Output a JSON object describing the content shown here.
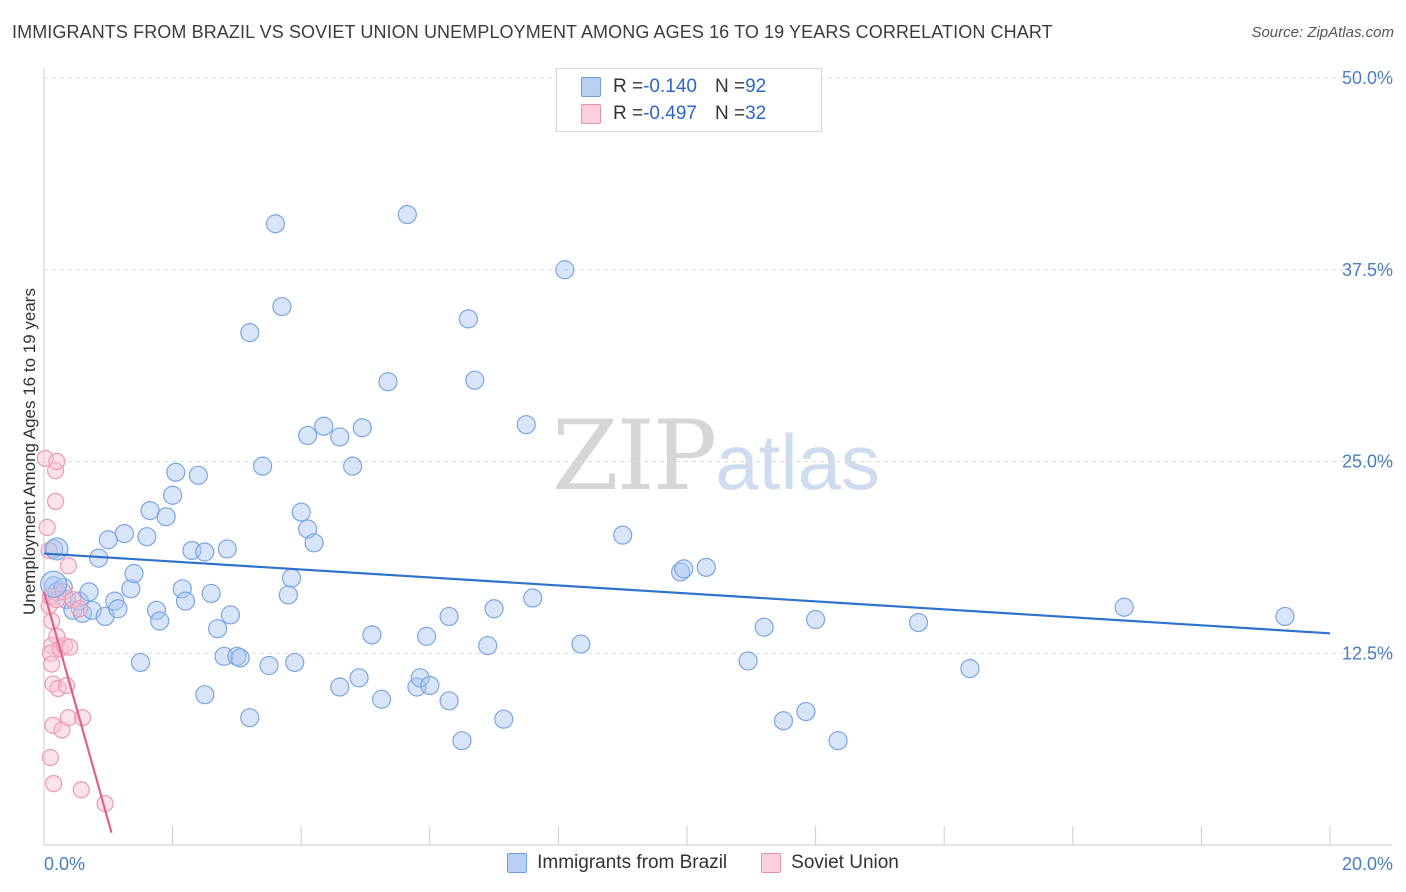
{
  "title": "IMMIGRANTS FROM BRAZIL VS SOVIET UNION UNEMPLOYMENT AMONG AGES 16 TO 19 YEARS CORRELATION CHART",
  "source": "Source: ZipAtlas.com",
  "watermark": {
    "zip": "ZIP",
    "atlas": "atlas"
  },
  "legend": {
    "r_label": "R = ",
    "n_label": "N = ",
    "rows": [
      {
        "r": "-0.140",
        "n": "92",
        "color": "#a9c6f0",
        "border": "#6e9fe0"
      },
      {
        "r": "-0.497",
        "n": "32",
        "color": "#f8c0cf",
        "border": "#ec8fab"
      }
    ]
  },
  "bottom_legend": [
    "Immigrants from Brazil",
    "Soviet Union"
  ],
  "chart_data": {
    "type": "scatter",
    "ylabel": "Unemployment Among Ages 16 to 19 years",
    "xlim": [
      0,
      20
    ],
    "ylim": [
      0,
      50
    ],
    "x_tick_labels": [
      "0.0%",
      "20.0%"
    ],
    "y_tick_labels": [
      "12.5%",
      "25.0%",
      "37.5%",
      "50.0%"
    ],
    "y_ticks": [
      12.5,
      25,
      37.5,
      50
    ],
    "grid": true,
    "legend_position": "top-center",
    "colors": {
      "brazil": "#6e9fe0",
      "soviet": "#e8769a",
      "brazil_line": "#2f72cc",
      "soviet_line": "#e3608a"
    },
    "series": [
      {
        "name": "Immigrants from Brazil",
        "trend": {
          "x": [
            0.0,
            20.0
          ],
          "y": [
            19.0,
            13.8
          ]
        },
        "points": [
          [
            0.15,
            19.3
          ],
          [
            0.15,
            16.9
          ],
          [
            0.2,
            16.5
          ],
          [
            0.3,
            16.8
          ],
          [
            0.35,
            16.0
          ],
          [
            0.45,
            15.3
          ],
          [
            0.55,
            15.9
          ],
          [
            0.6,
            15.1
          ],
          [
            0.7,
            16.5
          ],
          [
            0.75,
            15.3
          ],
          [
            0.85,
            18.7
          ],
          [
            0.95,
            14.9
          ],
          [
            1.0,
            19.9
          ],
          [
            1.1,
            15.9
          ],
          [
            1.15,
            15.4
          ],
          [
            1.25,
            20.3
          ],
          [
            1.35,
            16.7
          ],
          [
            1.4,
            17.7
          ],
          [
            1.5,
            11.9
          ],
          [
            1.6,
            20.1
          ],
          [
            1.65,
            21.8
          ],
          [
            1.75,
            15.3
          ],
          [
            1.8,
            14.6
          ],
          [
            1.9,
            21.4
          ],
          [
            2.0,
            22.8
          ],
          [
            2.05,
            24.3
          ],
          [
            2.15,
            16.7
          ],
          [
            2.2,
            15.9
          ],
          [
            2.3,
            19.2
          ],
          [
            2.4,
            24.1
          ],
          [
            2.5,
            9.8
          ],
          [
            2.5,
            19.1
          ],
          [
            2.6,
            16.4
          ],
          [
            2.7,
            14.1
          ],
          [
            2.8,
            12.3
          ],
          [
            2.85,
            19.3
          ],
          [
            2.9,
            15.0
          ],
          [
            3.0,
            12.3
          ],
          [
            3.05,
            12.2
          ],
          [
            3.2,
            33.4
          ],
          [
            3.2,
            8.3
          ],
          [
            3.4,
            24.7
          ],
          [
            3.5,
            11.7
          ],
          [
            3.6,
            40.5
          ],
          [
            3.7,
            35.1
          ],
          [
            3.8,
            16.3
          ],
          [
            3.85,
            17.4
          ],
          [
            3.9,
            11.9
          ],
          [
            4.0,
            21.7
          ],
          [
            4.1,
            20.6
          ],
          [
            4.1,
            26.7
          ],
          [
            4.2,
            19.7
          ],
          [
            4.35,
            27.3
          ],
          [
            4.6,
            26.6
          ],
          [
            4.6,
            10.3
          ],
          [
            4.8,
            24.7
          ],
          [
            4.9,
            10.9
          ],
          [
            4.95,
            27.2
          ],
          [
            5.1,
            13.7
          ],
          [
            5.25,
            9.5
          ],
          [
            5.35,
            30.2
          ],
          [
            5.65,
            41.1
          ],
          [
            5.8,
            10.3
          ],
          [
            5.85,
            10.9
          ],
          [
            5.95,
            13.6
          ],
          [
            6.0,
            10.4
          ],
          [
            6.3,
            9.4
          ],
          [
            6.3,
            14.9
          ],
          [
            6.5,
            6.8
          ],
          [
            6.6,
            34.3
          ],
          [
            6.7,
            30.3
          ],
          [
            6.9,
            13.0
          ],
          [
            7.0,
            15.4
          ],
          [
            7.15,
            8.2
          ],
          [
            7.5,
            27.4
          ],
          [
            7.6,
            16.1
          ],
          [
            8.1,
            37.5
          ],
          [
            8.35,
            13.1
          ],
          [
            9.0,
            20.2
          ],
          [
            9.9,
            17.8
          ],
          [
            9.95,
            18.0
          ],
          [
            10.3,
            18.1
          ],
          [
            10.95,
            12.0
          ],
          [
            11.2,
            14.2
          ],
          [
            11.5,
            8.1
          ],
          [
            11.85,
            8.7
          ],
          [
            12.0,
            14.7
          ],
          [
            12.35,
            6.8
          ],
          [
            13.6,
            14.5
          ],
          [
            14.4,
            11.5
          ],
          [
            16.8,
            15.5
          ],
          [
            19.3,
            14.9
          ]
        ]
      },
      {
        "name": "Soviet Union",
        "trend": {
          "x": [
            0.0,
            1.05
          ],
          "y": [
            16.5,
            0.8
          ]
        },
        "points": [
          [
            0.02,
            25.2
          ],
          [
            0.05,
            20.7
          ],
          [
            0.08,
            19.2
          ],
          [
            0.08,
            15.6
          ],
          [
            0.1,
            16.2
          ],
          [
            0.12,
            14.6
          ],
          [
            0.12,
            13.0
          ],
          [
            0.1,
            12.5
          ],
          [
            0.12,
            11.8
          ],
          [
            0.14,
            10.5
          ],
          [
            0.14,
            7.8
          ],
          [
            0.1,
            5.7
          ],
          [
            0.15,
            4.0
          ],
          [
            0.18,
            24.4
          ],
          [
            0.18,
            22.4
          ],
          [
            0.2,
            25.0
          ],
          [
            0.2,
            16.0
          ],
          [
            0.2,
            13.6
          ],
          [
            0.22,
            10.2
          ],
          [
            0.25,
            12.8
          ],
          [
            0.28,
            7.5
          ],
          [
            0.3,
            16.5
          ],
          [
            0.32,
            13.0
          ],
          [
            0.35,
            10.4
          ],
          [
            0.38,
            8.3
          ],
          [
            0.38,
            18.2
          ],
          [
            0.4,
            12.9
          ],
          [
            0.45,
            16.0
          ],
          [
            0.55,
            15.4
          ],
          [
            0.6,
            8.3
          ],
          [
            0.58,
            3.6
          ],
          [
            0.95,
            2.7
          ]
        ]
      }
    ]
  }
}
